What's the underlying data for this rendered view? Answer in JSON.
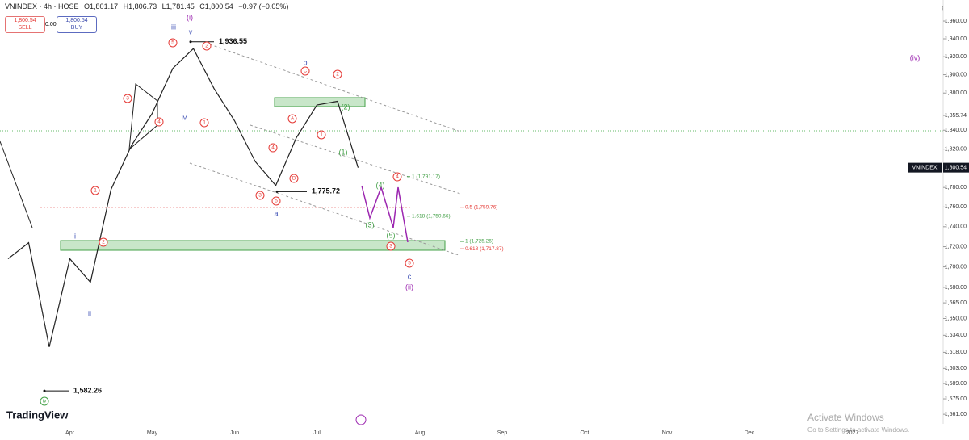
{
  "header": {
    "symbol": "VNINDEX · 4h · HOSE",
    "open": "O1,801.17",
    "high": "H1,806.73",
    "low": "L1,781.45",
    "close": "C1,800.54",
    "change": "−0.97 (−0.05%)",
    "sell_price": "1,800.54",
    "sell_label": "SELL",
    "spread": "0.00",
    "buy_price": "1,800.54",
    "buy_label": "BUY"
  },
  "watermark": {
    "logo": "TradingView",
    "activate": "Activate Windows",
    "activate_note": "Go to Settings to activate Windows."
  },
  "chart_data": {
    "type": "line",
    "log_scale": true,
    "y_unit": "point",
    "categories": [
      null,
      null,
      null,
      "Apr",
      null,
      null,
      null,
      "May",
      null,
      null,
      null,
      "Jun",
      null,
      null,
      null,
      "Jul",
      null,
      null,
      null,
      null,
      "Aug",
      null,
      null,
      null,
      "Sep",
      null,
      null,
      null,
      "Oct",
      null,
      null,
      null,
      "Nov",
      null,
      null,
      null,
      "Dec",
      null,
      null,
      null,
      null,
      "2027",
      null,
      null,
      null,
      null
    ],
    "series": [
      {
        "name": "VNINDEX",
        "color": "#222222",
        "values": [
          1708,
          1724,
          1623,
          1708,
          1685,
          1778,
          1824,
          1858,
          1907,
          1929,
          1885,
          1850,
          1807,
          1782,
          1832,
          1867,
          1871,
          1800.54,
          null,
          null,
          null,
          null,
          null,
          null,
          null,
          null,
          null,
          null,
          null,
          null,
          null,
          null,
          null,
          null,
          null,
          null,
          null,
          null,
          null,
          null,
          null,
          null,
          null,
          null,
          null,
          null
        ]
      }
    ],
    "ylim": [
      1556,
      1984
    ],
    "yticks": [
      {
        "value": 1960,
        "label": "1,960.00"
      },
      {
        "value": 1940,
        "label": "1,940.00"
      },
      {
        "value": 1920,
        "label": "1,920.00"
      },
      {
        "value": 1900,
        "label": "1,900.00"
      },
      {
        "value": 1880,
        "label": "1,880.00"
      },
      {
        "value": 1855.74,
        "label": "1,855.74"
      },
      {
        "value": 1840,
        "label": "1,840.00"
      },
      {
        "value": 1820,
        "label": "1,820.00"
      },
      {
        "value": 1780,
        "label": "1,780.00"
      },
      {
        "value": 1760,
        "label": "1,760.00"
      },
      {
        "value": 1740,
        "label": "1,740.00"
      },
      {
        "value": 1720,
        "label": "1,720.00"
      },
      {
        "value": 1700,
        "label": "1,700.00"
      },
      {
        "value": 1680,
        "label": "1,680.00"
      },
      {
        "value": 1665,
        "label": "1,665.00"
      },
      {
        "value": 1650,
        "label": "1,650.00"
      },
      {
        "value": 1634,
        "label": "1,634.00"
      },
      {
        "value": 1618,
        "label": "1,618.00"
      },
      {
        "value": 1603,
        "label": "1,603.00"
      },
      {
        "value": 1589,
        "label": "1,589.00"
      },
      {
        "value": 1575,
        "label": "1,575.00"
      },
      {
        "value": 1561,
        "label": "1,561.00"
      }
    ],
    "price_tag": {
      "name": "VNINDEX",
      "value": 1800.54,
      "label": "1,800.54"
    },
    "key_prices": [
      {
        "value": 1936.55,
        "label": "1,936.55"
      },
      {
        "value": 1775.72,
        "label": "1,775.72"
      },
      {
        "value": 1582.26,
        "label": "1,582.26"
      }
    ],
    "fib_levels": [
      {
        "value": 1791.17,
        "label": "1 (1,791.17)",
        "color": "#43a047"
      },
      {
        "value": 1759.76,
        "label": "0.5 (1,759.76)",
        "color": "#e53935"
      },
      {
        "value": 1750.66,
        "label": "1.618 (1,750.66)",
        "color": "#43a047"
      },
      {
        "value": 1725.26,
        "label": "1 (1,725.26)",
        "color": "#43a047"
      },
      {
        "value": 1717.87,
        "label": "0.618 (1,717.87)",
        "color": "#e53935"
      }
    ],
    "wave_labels": [
      "(i)",
      "iii",
      "v",
      "iv",
      "i",
      "ii",
      "(iv)",
      "a",
      "b",
      "c",
      "(ii)",
      "iv",
      "5",
      "2",
      "3",
      "4",
      "1",
      "1",
      "2",
      "3",
      "5",
      "4",
      "B",
      "A",
      "C",
      "2",
      "1",
      "4",
      "3",
      "5",
      "(2)",
      "(1)",
      "(4)",
      "(3)",
      "(5)"
    ]
  }
}
